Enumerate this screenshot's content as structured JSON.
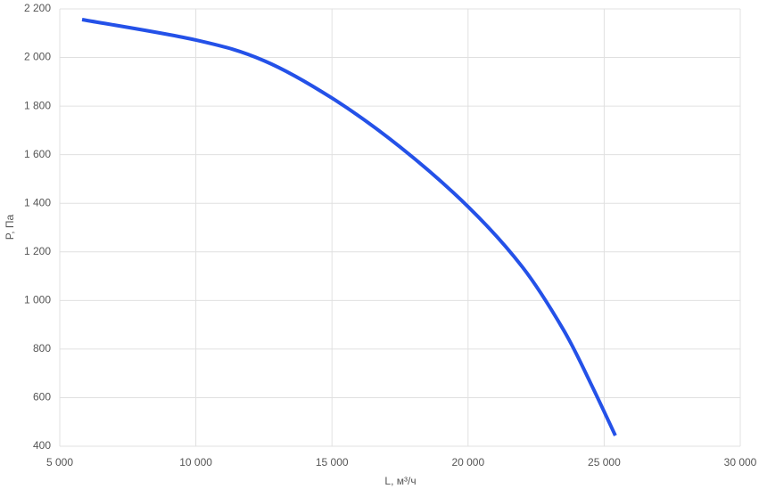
{
  "chart_data": {
    "type": "line",
    "x_label": "L, м³/ч",
    "y_label": "P, Па",
    "xlim": [
      5000,
      30000
    ],
    "xticks": [
      {
        "value": 5000,
        "label": "5 000"
      },
      {
        "value": 10000,
        "label": "10 000"
      },
      {
        "value": 15000,
        "label": "15 000"
      },
      {
        "value": 20000,
        "label": "20 000"
      },
      {
        "value": 25000,
        "label": "25 000"
      },
      {
        "value": 30000,
        "label": "30 000"
      }
    ],
    "ylim": [
      400,
      2200
    ],
    "yticks": [
      400,
      600,
      800,
      {
        "value": 1000,
        "label": "1 000"
      },
      {
        "value": 1200,
        "label": "1 200"
      },
      {
        "value": 1400,
        "label": "1 400"
      },
      {
        "value": 1600,
        "label": "1 600"
      },
      {
        "value": 1800,
        "label": "1 800"
      },
      {
        "value": 2000,
        "label": "2 000"
      },
      {
        "value": 2200,
        "label": "2 200"
      }
    ],
    "grid": true,
    "x": [
      5820,
      10000,
      12500,
      15000,
      17500,
      20000,
      22000,
      23500,
      24500,
      25410
    ],
    "series": [
      {
        "color": "#2451e8",
        "values": [
          2156,
          2072,
          1987,
          1833,
          1632,
          1386,
          1137,
          880,
          660,
          444
        ]
      }
    ]
  }
}
